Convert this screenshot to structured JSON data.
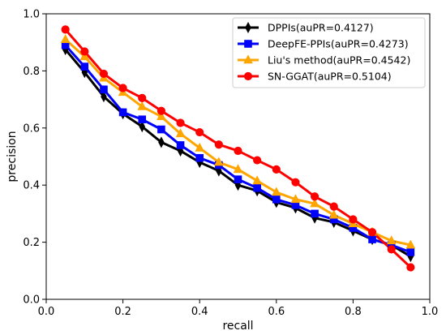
{
  "chart_data": {
    "type": "line",
    "xlabel": "recall",
    "ylabel": "precision",
    "xlim": [
      0.0,
      1.0
    ],
    "ylim": [
      0.0,
      1.0
    ],
    "xticks": [
      "0.0",
      "0.2",
      "0.4",
      "0.6",
      "0.8",
      "1.0"
    ],
    "yticks": [
      "0.0",
      "0.2",
      "0.4",
      "0.6",
      "0.8",
      "1.0"
    ],
    "grid": false,
    "legend_position": "top-right",
    "x": [
      0.05,
      0.1,
      0.15,
      0.2,
      0.25,
      0.3,
      0.35,
      0.4,
      0.45,
      0.5,
      0.55,
      0.6,
      0.65,
      0.7,
      0.75,
      0.8,
      0.85,
      0.9,
      0.95
    ],
    "series": [
      {
        "name": "DPPIs(auPR=0.4127)",
        "color": "#000000",
        "marker": "thin-diamond",
        "values": [
          0.875,
          0.795,
          0.71,
          0.65,
          0.605,
          0.55,
          0.52,
          0.48,
          0.45,
          0.4,
          0.38,
          0.34,
          0.32,
          0.285,
          0.27,
          0.24,
          0.21,
          0.19,
          0.15
        ]
      },
      {
        "name": "DeepFE-PPIs(auPR=0.4273)",
        "color": "#0000ff",
        "marker": "square",
        "values": [
          0.89,
          0.815,
          0.735,
          0.655,
          0.63,
          0.595,
          0.54,
          0.495,
          0.47,
          0.42,
          0.39,
          0.35,
          0.33,
          0.3,
          0.28,
          0.25,
          0.21,
          0.19,
          0.165
        ]
      },
      {
        "name": "Liu's method(auPR=0.4542)",
        "color": "#ffa500",
        "marker": "triangle",
        "values": [
          0.91,
          0.85,
          0.775,
          0.725,
          0.675,
          0.64,
          0.58,
          0.53,
          0.48,
          0.455,
          0.415,
          0.375,
          0.35,
          0.335,
          0.295,
          0.265,
          0.235,
          0.205,
          0.19
        ]
      },
      {
        "name": "SN-GGAT(auPR=0.5104)",
        "color": "#ff0000",
        "marker": "circle",
        "values": [
          0.945,
          0.868,
          0.79,
          0.74,
          0.705,
          0.66,
          0.618,
          0.585,
          0.542,
          0.52,
          0.487,
          0.455,
          0.41,
          0.36,
          0.325,
          0.28,
          0.235,
          0.175,
          0.112
        ]
      }
    ]
  }
}
